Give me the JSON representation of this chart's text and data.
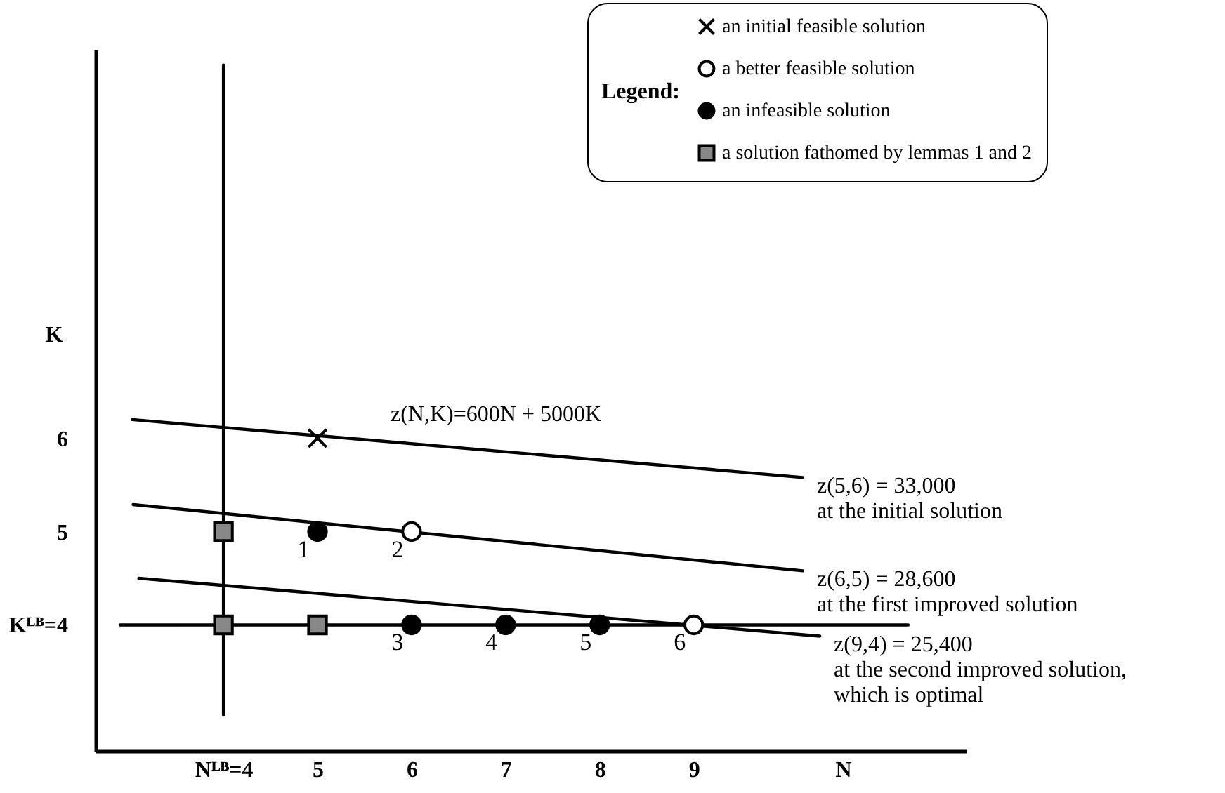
{
  "chart_data": {
    "type": "scatter",
    "xlabel": "N",
    "ylabel": "K",
    "legend_title": "Legend:",
    "legend": "top right",
    "xlim": [
      2.64,
      11.9
    ],
    "ylim": [
      2.65,
      10.17
    ],
    "xticks": [
      {
        "value": 4,
        "label": "Nᴸᴮ=4"
      },
      5,
      6,
      7,
      8,
      9
    ],
    "yticks": [
      {
        "value": 4,
        "label": "Kᴸᴮ=4"
      },
      5,
      6
    ],
    "series": [
      {
        "name": "an initial feasible solution",
        "type": "scatter",
        "marker": "cross",
        "color": "#000000",
        "x": [
          5
        ],
        "values": [
          6
        ]
      },
      {
        "name": "a better feasible solution",
        "type": "scatter",
        "marker": "circle",
        "color": "#ffffff",
        "x": [
          6,
          9
        ],
        "values": [
          5,
          4
        ]
      },
      {
        "name": "an infeasible solution",
        "type": "scatter",
        "marker": "circle",
        "color": "#000000",
        "x": [
          5,
          6,
          7,
          8
        ],
        "values": [
          5,
          4,
          4,
          4
        ]
      },
      {
        "name": "a solution fathomed by lemmas 1 and 2",
        "type": "scatter",
        "marker": "square",
        "color": "#888888",
        "x": [
          4,
          4,
          5
        ],
        "values": [
          5,
          4,
          4
        ]
      },
      {
        "type": "line",
        "color": "#000000",
        "x": [
          3.03,
          10.16
        ],
        "values": [
          6.2,
          5.58
        ]
      },
      {
        "type": "line",
        "color": "#000000",
        "x": [
          3.04,
          10.16
        ],
        "values": [
          5.29,
          4.58
        ]
      },
      {
        "type": "line",
        "color": "#000000",
        "x": [
          3.1,
          10.34
        ],
        "values": [
          4.5,
          3.88
        ]
      },
      {
        "type": "line",
        "color": "#000000",
        "x": [
          2.9,
          11.28
        ],
        "values": [
          4,
          4
        ]
      },
      {
        "type": "line",
        "color": "#000000",
        "x": [
          4,
          4
        ],
        "values": [
          3.04,
          10.0
        ]
      }
    ],
    "annotations": [
      "z(N,K)=600N + 5000K",
      {
        "text": "z(5,6) = 33,000\nat the initial solution",
        "x": 10.16,
        "y": 5.58
      },
      {
        "text": "z(6,5) = 28,600\nat the first improved solution",
        "x": 10.16,
        "y": 4.58
      },
      {
        "text": "z(9,4) = 25,400\nat the second improved solution,\nwhich is optimal",
        "x": 10.34,
        "y": 3.88
      },
      {
        "text": "1",
        "x": 5,
        "y": 5
      },
      {
        "text": "2",
        "x": 6,
        "y": 5
      },
      {
        "text": "3",
        "x": 6,
        "y": 4
      },
      {
        "text": "4",
        "x": 7,
        "y": 4
      },
      {
        "text": "5",
        "x": 8,
        "y": 4
      },
      {
        "text": "6",
        "x": 9,
        "y": 4
      }
    ]
  }
}
